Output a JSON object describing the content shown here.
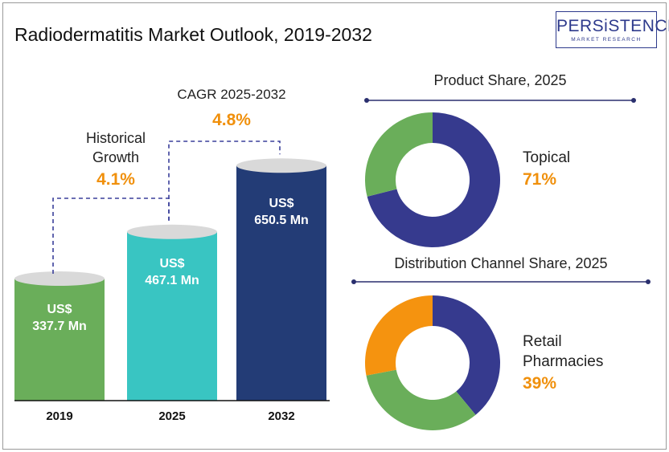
{
  "title": "Radiodermatitis Market Outlook, 2019-2032",
  "logo": {
    "brand": "PERSiSTENCE",
    "sub": "MARKET RESEARCH"
  },
  "colors": {
    "bar_2019": "#6aae5a",
    "bar_2025": "#39c5c2",
    "bar_2032": "#233c76",
    "accent": "#f0900c",
    "navy": "#2e3a8c"
  },
  "chart_data": [
    {
      "type": "bar",
      "categories": [
        "2019",
        "2025",
        "2032"
      ],
      "values": [
        337.7,
        467.1,
        650.5
      ],
      "value_labels": [
        [
          "US$",
          "337.7 Mn"
        ],
        [
          "US$",
          "467.1 Mn"
        ],
        [
          "US$",
          "650.5 Mn"
        ]
      ],
      "title": "Radiodermatitis Market Outlook, 2019-2032",
      "annotations": {
        "historical": {
          "label_line1": "Historical",
          "label_line2": "Growth",
          "value": "4.1%"
        },
        "cagr": {
          "label": "CAGR 2025-2032",
          "value": "4.8%"
        }
      }
    },
    {
      "type": "pie",
      "title": "Product Share, 2025",
      "slices": [
        {
          "name": "Topical",
          "value": 71,
          "color": "#363a8e"
        },
        {
          "name": "",
          "value": 29,
          "color": "#6aae5a"
        }
      ],
      "highlight": {
        "label": "Topical",
        "value": "71%"
      }
    },
    {
      "type": "pie",
      "title": "Distribution Channel Share, 2025",
      "slices": [
        {
          "name": "Retail Pharmacies",
          "value": 39,
          "color": "#363a8e"
        },
        {
          "name": "",
          "value": 33,
          "color": "#6aae5a"
        },
        {
          "name": "",
          "value": 28,
          "color": "#f5930f"
        }
      ],
      "highlight": {
        "label_line1": "Retail",
        "label_line2": "Pharmacies",
        "value": "39%"
      }
    }
  ]
}
